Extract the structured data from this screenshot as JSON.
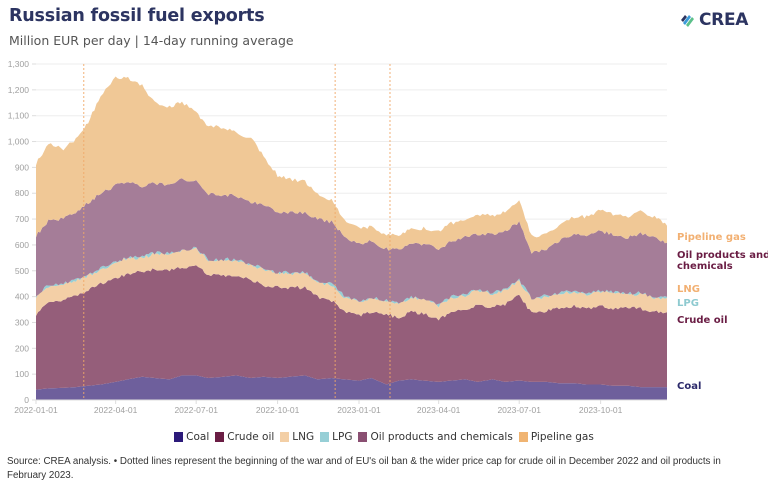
{
  "header": {
    "title": "Russian fossil fuel exports",
    "subtitle": "Million EUR per day | 14-day running average",
    "logo_text": "CREA",
    "logo_icon": "crea-leaf-icon"
  },
  "footer": {
    "source_text": "Source: CREA analysis. • Dotted lines represent the beginning of the war and of EU's oil ban & the wider price cap for crude oil in December 2022 and oil products in February 2023."
  },
  "chart_data": {
    "type": "area",
    "stacked": true,
    "title": "Russian fossil fuel exports",
    "subtitle": "Million EUR per day | 14-day running average",
    "xlabel": "",
    "ylabel": "",
    "ylim": [
      0,
      1300
    ],
    "yticks": [
      0,
      100,
      200,
      300,
      400,
      500,
      600,
      700,
      800,
      900,
      1000,
      1100,
      1200,
      1300
    ],
    "ytick_labels": [
      "0",
      "100",
      "200",
      "300",
      "400",
      "500",
      "600",
      "700",
      "800",
      "900",
      "1,000",
      "1,100",
      "1,200",
      "1,300"
    ],
    "xlim": [
      "2022-01-01",
      "2023-12-15"
    ],
    "xticks": [
      "2022-01-01",
      "2022-04-01",
      "2022-07-01",
      "2022-10-01",
      "2023-01-01",
      "2023-04-01",
      "2023-07-01",
      "2023-10-01"
    ],
    "grid": true,
    "legend_position": "bottom",
    "vlines": [
      {
        "date": "2022-02-24",
        "label": "Beginning of the war",
        "style": "dotted"
      },
      {
        "date": "2022-12-05",
        "label": "EU oil ban & price cap for crude oil",
        "style": "dotted"
      },
      {
        "date": "2023-02-05",
        "label": "EU ban & price cap for oil products",
        "style": "dotted"
      }
    ],
    "x": [
      "2022-01-01",
      "2022-01-15",
      "2022-02-01",
      "2022-02-15",
      "2022-03-01",
      "2022-03-15",
      "2022-04-01",
      "2022-04-15",
      "2022-05-01",
      "2022-05-15",
      "2022-06-01",
      "2022-06-15",
      "2022-07-01",
      "2022-07-15",
      "2022-08-01",
      "2022-08-15",
      "2022-09-01",
      "2022-09-15",
      "2022-10-01",
      "2022-10-15",
      "2022-11-01",
      "2022-11-15",
      "2022-12-01",
      "2022-12-15",
      "2023-01-01",
      "2023-01-15",
      "2023-02-01",
      "2023-02-15",
      "2023-03-01",
      "2023-03-15",
      "2023-04-01",
      "2023-04-15",
      "2023-05-01",
      "2023-05-15",
      "2023-06-01",
      "2023-06-15",
      "2023-07-01",
      "2023-07-15",
      "2023-08-01",
      "2023-08-15",
      "2023-09-01",
      "2023-09-15",
      "2023-10-01",
      "2023-10-15",
      "2023-11-01",
      "2023-11-15",
      "2023-12-01",
      "2023-12-15"
    ],
    "series": [
      {
        "name": "Coal",
        "color": "#6e5f9c",
        "label_color": "#2c2a6b",
        "values": [
          40,
          45,
          47,
          50,
          55,
          60,
          70,
          80,
          90,
          85,
          80,
          95,
          95,
          85,
          90,
          95,
          85,
          90,
          85,
          90,
          95,
          80,
          85,
          80,
          75,
          85,
          60,
          75,
          80,
          75,
          70,
          75,
          80,
          70,
          80,
          70,
          75,
          70,
          70,
          65,
          65,
          60,
          60,
          55,
          55,
          50,
          50,
          50
        ]
      },
      {
        "name": "Crude oil",
        "color": "#955e7a",
        "label_color": "#6a1d44",
        "values": [
          290,
          330,
          340,
          355,
          370,
          390,
          400,
          410,
          405,
          420,
          425,
          415,
          425,
          400,
          390,
          385,
          380,
          355,
          350,
          345,
          340,
          320,
          300,
          265,
          250,
          255,
          270,
          245,
          260,
          260,
          240,
          265,
          270,
          300,
          280,
          300,
          330,
          265,
          275,
          290,
          300,
          290,
          305,
          300,
          300,
          305,
          290,
          290
        ]
      },
      {
        "name": "LNG",
        "color": "#f3cfa6",
        "label_color": "#f2b072",
        "values": [
          70,
          65,
          60,
          55,
          55,
          55,
          60,
          60,
          55,
          60,
          60,
          65,
          65,
          55,
          60,
          60,
          55,
          60,
          55,
          55,
          55,
          55,
          60,
          55,
          55,
          55,
          50,
          55,
          55,
          55,
          55,
          55,
          55,
          55,
          50,
          55,
          55,
          55,
          55,
          55,
          55,
          55,
          55,
          60,
          55,
          55,
          55,
          55
        ]
      },
      {
        "name": "LPG",
        "color": "#97cfd6",
        "label_color": "#8ecad0",
        "values": [
          4,
          4,
          4,
          4,
          4,
          4,
          4,
          4,
          4,
          4,
          4,
          4,
          4,
          4,
          4,
          4,
          4,
          4,
          4,
          4,
          4,
          4,
          4,
          4,
          4,
          4,
          4,
          4,
          4,
          4,
          4,
          4,
          4,
          4,
          4,
          4,
          4,
          4,
          4,
          4,
          4,
          4,
          4,
          4,
          4,
          4,
          4,
          4
        ]
      },
      {
        "name": "Oil products and chemicals",
        "color": "#a57d98",
        "label_color": "#6a1d44",
        "values": [
          230,
          250,
          250,
          265,
          280,
          290,
          295,
          290,
          275,
          270,
          265,
          275,
          260,
          255,
          250,
          245,
          240,
          245,
          235,
          230,
          230,
          240,
          240,
          230,
          220,
          215,
          200,
          205,
          205,
          210,
          215,
          215,
          220,
          215,
          225,
          225,
          225,
          175,
          175,
          200,
          215,
          225,
          230,
          220,
          215,
          230,
          230,
          210
        ]
      },
      {
        "name": "Pipeline gas",
        "color": "#f0c896",
        "label_color": "#f2b072",
        "values": [
          280,
          300,
          270,
          280,
          310,
          380,
          420,
          400,
          390,
          310,
          300,
          300,
          260,
          260,
          260,
          245,
          250,
          190,
          140,
          130,
          120,
          100,
          85,
          65,
          60,
          55,
          55,
          55,
          55,
          60,
          70,
          70,
          65,
          70,
          75,
          75,
          80,
          65,
          60,
          65,
          70,
          75,
          80,
          80,
          80,
          85,
          80,
          65
        ]
      }
    ]
  },
  "right_labels": [
    {
      "text": "Pipeline gas",
      "color": "#f2b072"
    },
    {
      "text": "Oil products and",
      "color": "#6a1d44"
    },
    {
      "text": "chemicals",
      "color": "#6a1d44"
    },
    {
      "text": "LNG",
      "color": "#f2b072"
    },
    {
      "text": "LPG",
      "color": "#8ecad0"
    },
    {
      "text": "Crude oil",
      "color": "#6a1d44"
    },
    {
      "text": "Coal",
      "color": "#2c2a6b"
    }
  ],
  "legend": [
    {
      "label": "Coal",
      "color": "#2c1a7a"
    },
    {
      "label": "Crude oil",
      "color": "#6a1d44"
    },
    {
      "label": "LNG",
      "color": "#f3cfa6"
    },
    {
      "label": "LPG",
      "color": "#97cfd6"
    },
    {
      "label": "Oil products and chemicals",
      "color": "#8a4f72"
    },
    {
      "label": "Pipeline gas",
      "color": "#f0b472"
    }
  ]
}
